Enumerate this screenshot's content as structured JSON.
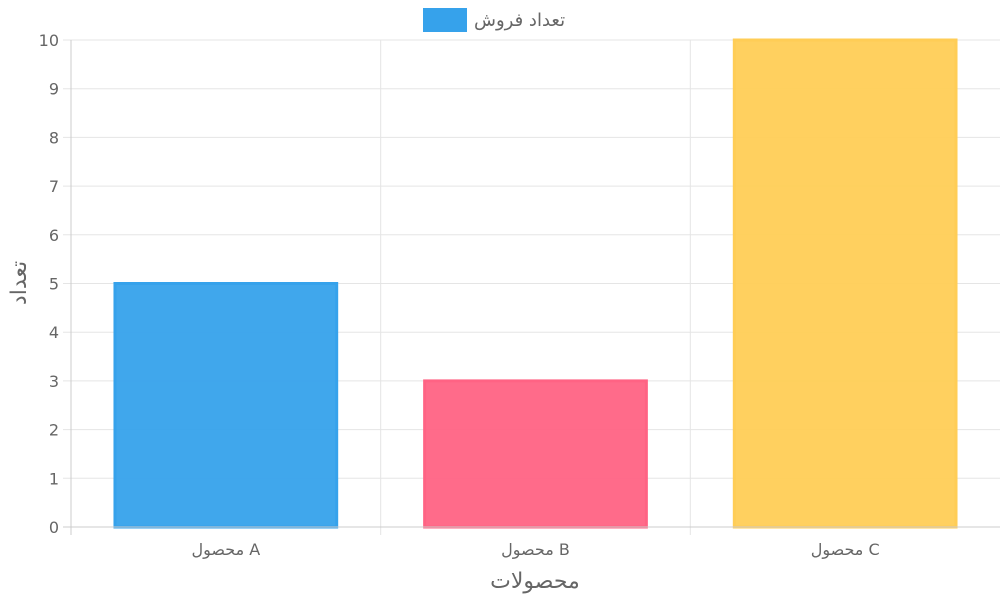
{
  "chart_data": {
    "type": "bar",
    "categories": [
      "محصول A",
      "محصول B",
      "محصول C"
    ],
    "series": [
      {
        "name": "تعداد فروش",
        "values": [
          5,
          3,
          10
        ],
        "colors": [
          "#36a2eb",
          "#ff6384",
          "#ffcd56"
        ]
      }
    ],
    "legend": {
      "label": "تعداد فروش",
      "color": "#36a2eb",
      "position": "top"
    },
    "xlabel": "محصولات",
    "ylabel": "تعداد",
    "ylim": [
      0,
      10
    ],
    "yticks": [
      "0",
      "1",
      "2",
      "3",
      "4",
      "5",
      "6",
      "7",
      "8",
      "9",
      "10"
    ],
    "grid": true
  }
}
